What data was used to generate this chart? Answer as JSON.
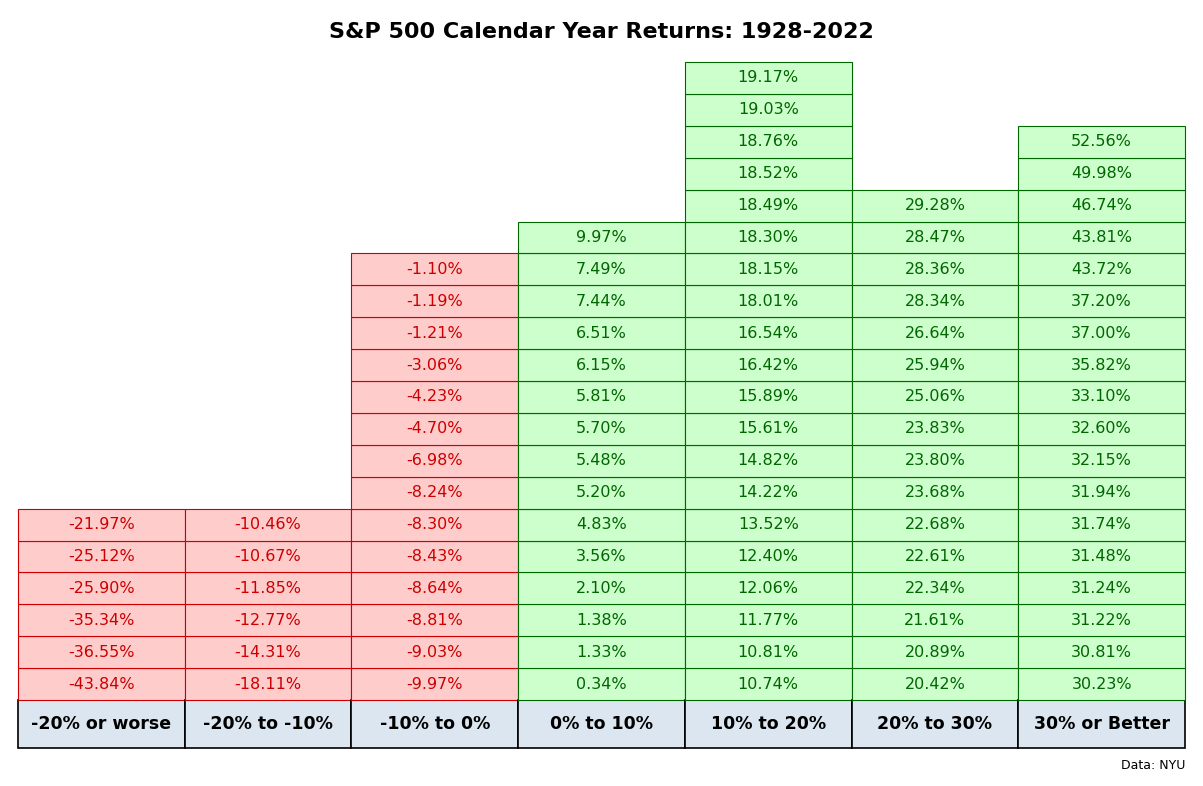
{
  "title": "S&P 500 Calendar Year Returns: 1928-2022",
  "footnote": "Data: NYU",
  "columns": [
    {
      "header": "-20% or worse",
      "values": [
        "-21.97%",
        "-25.12%",
        "-25.90%",
        "-35.34%",
        "-36.55%",
        "-43.84%"
      ],
      "color": "negative"
    },
    {
      "header": "-20% to -10%",
      "values": [
        "-10.46%",
        "-10.67%",
        "-11.85%",
        "-12.77%",
        "-14.31%",
        "-18.11%"
      ],
      "color": "negative"
    },
    {
      "header": "-10% to 0%",
      "values": [
        "-1.10%",
        "-1.19%",
        "-1.21%",
        "-3.06%",
        "-4.23%",
        "-4.70%",
        "-6.98%",
        "-8.24%",
        "-8.30%",
        "-8.43%",
        "-8.64%",
        "-8.81%",
        "-9.03%",
        "-9.97%"
      ],
      "color": "negative"
    },
    {
      "header": "0% to 10%",
      "values": [
        "9.97%",
        "7.49%",
        "7.44%",
        "6.51%",
        "6.15%",
        "5.81%",
        "5.70%",
        "5.48%",
        "5.20%",
        "4.83%",
        "3.56%",
        "2.10%",
        "1.38%",
        "1.33%",
        "0.34%"
      ],
      "color": "positive"
    },
    {
      "header": "10% to 20%",
      "values": [
        "19.17%",
        "19.03%",
        "18.76%",
        "18.52%",
        "18.49%",
        "18.30%",
        "18.15%",
        "18.01%",
        "16.54%",
        "16.42%",
        "15.89%",
        "15.61%",
        "14.82%",
        "14.22%",
        "13.52%",
        "12.40%",
        "12.06%",
        "11.77%",
        "10.81%",
        "10.74%"
      ],
      "color": "positive"
    },
    {
      "header": "20% to 30%",
      "values": [
        "29.28%",
        "28.47%",
        "28.36%",
        "28.34%",
        "26.64%",
        "25.94%",
        "25.06%",
        "23.83%",
        "23.80%",
        "23.68%",
        "22.68%",
        "22.61%",
        "22.34%",
        "21.61%",
        "20.89%",
        "20.42%"
      ],
      "color": "positive"
    },
    {
      "header": "30% or Better",
      "values": [
        "52.56%",
        "49.98%",
        "46.74%",
        "43.81%",
        "43.72%",
        "37.20%",
        "37.00%",
        "35.82%",
        "33.10%",
        "32.60%",
        "32.15%",
        "31.94%",
        "31.74%",
        "31.48%",
        "31.24%",
        "31.22%",
        "30.81%",
        "30.23%"
      ],
      "color": "positive"
    }
  ],
  "neg_bg": "#ffcccc",
  "neg_text": "#cc0000",
  "neg_border": "#cc0000",
  "pos_bg": "#ccffcc",
  "pos_text": "#006600",
  "pos_border": "#006600",
  "header_bg": "#dce6f1",
  "header_text": "#000000",
  "header_border": "#000000",
  "title_fontsize": 16,
  "font_size": 11.5,
  "header_font_size": 12.5
}
